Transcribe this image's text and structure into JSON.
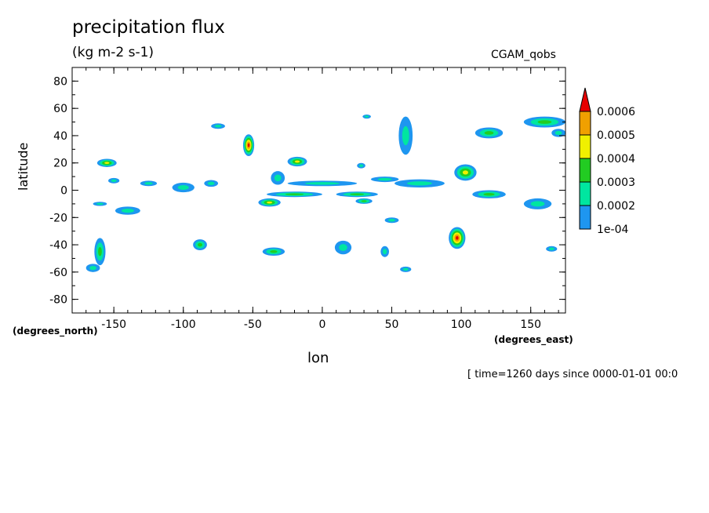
{
  "chart_data": {
    "type": "heatmap",
    "title": "precipitation flux",
    "units": "(kg m-2 s-1)",
    "source_label": "CGAM_qobs",
    "xlabel": "lon",
    "ylabel": "latitude",
    "x_coord_label": "(degrees_east)",
    "y_coord_label": "(degrees_north)",
    "time_label": "[ time=1260 days since 0000-01-01 00:0",
    "xlim": [
      -180,
      175
    ],
    "ylim": [
      -90,
      90
    ],
    "x_ticks": [
      -150,
      -100,
      -50,
      0,
      50,
      100,
      150
    ],
    "x_tick_labels": [
      "-150",
      "-100",
      "-50",
      "0",
      "50",
      "100",
      "150"
    ],
    "y_ticks": [
      80,
      60,
      40,
      20,
      0,
      -20,
      -40,
      -60,
      -80
    ],
    "y_tick_labels": [
      "80",
      "60",
      "40",
      "20",
      "0",
      "-20",
      "-40",
      "-60",
      "-80"
    ],
    "legend": {
      "placement": "right",
      "levels": [
        "1e-04",
        "0.0002",
        "0.0003",
        "0.0004",
        "0.0005",
        "0.0006"
      ],
      "colors": [
        "#1e96f0",
        "#00e6a0",
        "#22cc22",
        "#f0f000",
        "#f0a000",
        "#e60000"
      ]
    },
    "features": [
      {
        "lon": -155,
        "lat": 20,
        "rx": 7,
        "ry": 3,
        "peak": 0.0004
      },
      {
        "lon": -150,
        "lat": 7,
        "rx": 4,
        "ry": 2,
        "peak": 0.0002
      },
      {
        "lon": -160,
        "lat": -10,
        "rx": 5,
        "ry": 1.5,
        "peak": 0.0002
      },
      {
        "lon": -140,
        "lat": -15,
        "rx": 9,
        "ry": 3,
        "peak": 0.0002
      },
      {
        "lon": -125,
        "lat": 5,
        "rx": 6,
        "ry": 2,
        "peak": 0.0002
      },
      {
        "lon": -100,
        "lat": 2,
        "rx": 8,
        "ry": 3.5,
        "peak": 0.0002
      },
      {
        "lon": -80,
        "lat": 5,
        "rx": 5,
        "ry": 2.5,
        "peak": 0.0002
      },
      {
        "lon": -75,
        "lat": 47,
        "rx": 5,
        "ry": 2,
        "peak": 0.0002
      },
      {
        "lon": -53,
        "lat": 33,
        "rx": 4,
        "ry": 8,
        "peak": 0.0006
      },
      {
        "lon": -18,
        "lat": 21,
        "rx": 7,
        "ry": 3.5,
        "peak": 0.0004
      },
      {
        "lon": -32,
        "lat": 9,
        "rx": 5,
        "ry": 5,
        "peak": 0.0002
      },
      {
        "lon": 0,
        "lat": 5,
        "rx": 25,
        "ry": 2,
        "peak": 0.0002
      },
      {
        "lon": -20,
        "lat": -3,
        "rx": 20,
        "ry": 2,
        "peak": 0.0003
      },
      {
        "lon": -38,
        "lat": -9,
        "rx": 8,
        "ry": 3,
        "peak": 0.0004
      },
      {
        "lon": 25,
        "lat": -3,
        "rx": 15,
        "ry": 2,
        "peak": 0.0003
      },
      {
        "lon": 30,
        "lat": -8,
        "rx": 6,
        "ry": 2,
        "peak": 0.0003
      },
      {
        "lon": 45,
        "lat": 8,
        "rx": 10,
        "ry": 2,
        "peak": 0.0002
      },
      {
        "lon": 70,
        "lat": 5,
        "rx": 18,
        "ry": 3,
        "peak": 0.0002
      },
      {
        "lon": 60,
        "lat": 40,
        "rx": 5,
        "ry": 14,
        "peak": 0.0002
      },
      {
        "lon": 103,
        "lat": 13,
        "rx": 8,
        "ry": 6,
        "peak": 0.0004
      },
      {
        "lon": 97,
        "lat": -35,
        "rx": 6,
        "ry": 8,
        "peak": 0.0006
      },
      {
        "lon": 120,
        "lat": -3,
        "rx": 12,
        "ry": 3,
        "peak": 0.0003
      },
      {
        "lon": 155,
        "lat": -10,
        "rx": 10,
        "ry": 4,
        "peak": 0.0002
      },
      {
        "lon": 120,
        "lat": 42,
        "rx": 10,
        "ry": 4,
        "peak": 0.0003
      },
      {
        "lon": 160,
        "lat": 50,
        "rx": 15,
        "ry": 4,
        "peak": 0.0003
      },
      {
        "lon": 170,
        "lat": 42,
        "rx": 5,
        "ry": 3,
        "peak": 0.0002
      },
      {
        "lon": 50,
        "lat": -22,
        "rx": 5,
        "ry": 2,
        "peak": 0.0002
      },
      {
        "lon": -160,
        "lat": -45,
        "rx": 4,
        "ry": 10,
        "peak": 0.0003
      },
      {
        "lon": -165,
        "lat": -57,
        "rx": 5,
        "ry": 3,
        "peak": 0.0002
      },
      {
        "lon": -88,
        "lat": -40,
        "rx": 5,
        "ry": 4,
        "peak": 0.0003
      },
      {
        "lon": -35,
        "lat": -45,
        "rx": 8,
        "ry": 3,
        "peak": 0.0003
      },
      {
        "lon": 15,
        "lat": -42,
        "rx": 6,
        "ry": 5,
        "peak": 0.0002
      },
      {
        "lon": 45,
        "lat": -45,
        "rx": 3,
        "ry": 4,
        "peak": 0.0002
      },
      {
        "lon": 60,
        "lat": -58,
        "rx": 4,
        "ry": 2,
        "peak": 0.0002
      },
      {
        "lon": 32,
        "lat": 54,
        "rx": 3,
        "ry": 1.5,
        "peak": 0.0002
      },
      {
        "lon": 165,
        "lat": -43,
        "rx": 4,
        "ry": 2,
        "peak": 0.0002
      },
      {
        "lon": 28,
        "lat": 18,
        "rx": 3,
        "ry": 2,
        "peak": 0.0002
      }
    ]
  }
}
